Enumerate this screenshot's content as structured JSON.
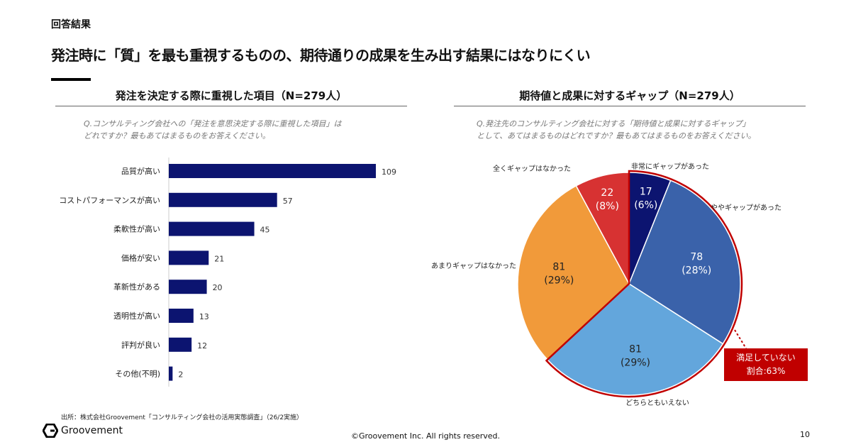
{
  "section_label": "回答結果",
  "headline": "発注時に「質」を最も重視するものの、期待通りの成果を生み出す結果にはなりにくい",
  "left": {
    "title": "発注を決定する際に重視した項目（N=279人）",
    "question": [
      "Q.コンサルティング会社への「発注を意思決定する際に重視した項目」は",
      "どれですか？最もあてはまるものをお答えください。"
    ]
  },
  "right": {
    "title": "期待値と成果に対するギャップ（N=279人）",
    "question": [
      "Q.発注先のコンサルティング会社に対する「期待値と成果に対するギャップ」",
      "として、あてはまるものはどれですか？最もあてはまるものをお答えください。"
    ],
    "callout": [
      "満足していない",
      "割合:63%"
    ]
  },
  "chart_data": [
    {
      "type": "bar",
      "orientation": "horizontal",
      "categories": [
        "品質が高い",
        "コストパフォーマンスが高い",
        "柔軟性が高い",
        "価格が安い",
        "革新性がある",
        "透明性が高い",
        "評判が良い",
        "その他(不明)"
      ],
      "values": [
        109,
        57,
        45,
        21,
        20,
        13,
        12,
        2
      ],
      "color": "#0c1470",
      "xlim": [
        0,
        109
      ]
    },
    {
      "type": "pie",
      "start": "top",
      "direction": "clockwise",
      "slices": [
        {
          "label": "非常にギャップがあった",
          "value": 17,
          "percent": "6%",
          "color": "#0c1470"
        },
        {
          "label": "ややギャップがあった",
          "value": 78,
          "percent": "28%",
          "color": "#3a62aa"
        },
        {
          "label": "どちらともいえない",
          "value": 81,
          "percent": "29%",
          "color": "#63a6dc"
        },
        {
          "label": "あまりギャップはなかった",
          "value": 81,
          "percent": "29%",
          "color": "#f19a3a"
        },
        {
          "label": "全くギャップはなかった",
          "value": 22,
          "percent": "8%",
          "color": "#d73232"
        }
      ],
      "highlight_color": "#c00000"
    }
  ],
  "footer": {
    "source": "出所：株式会社Groovement「コンサルティング会社の活用実態調査」（26/2実施）",
    "logo": "Groovement",
    "copyright": "©Groovement Inc. All rights reserved.",
    "page": "10"
  }
}
